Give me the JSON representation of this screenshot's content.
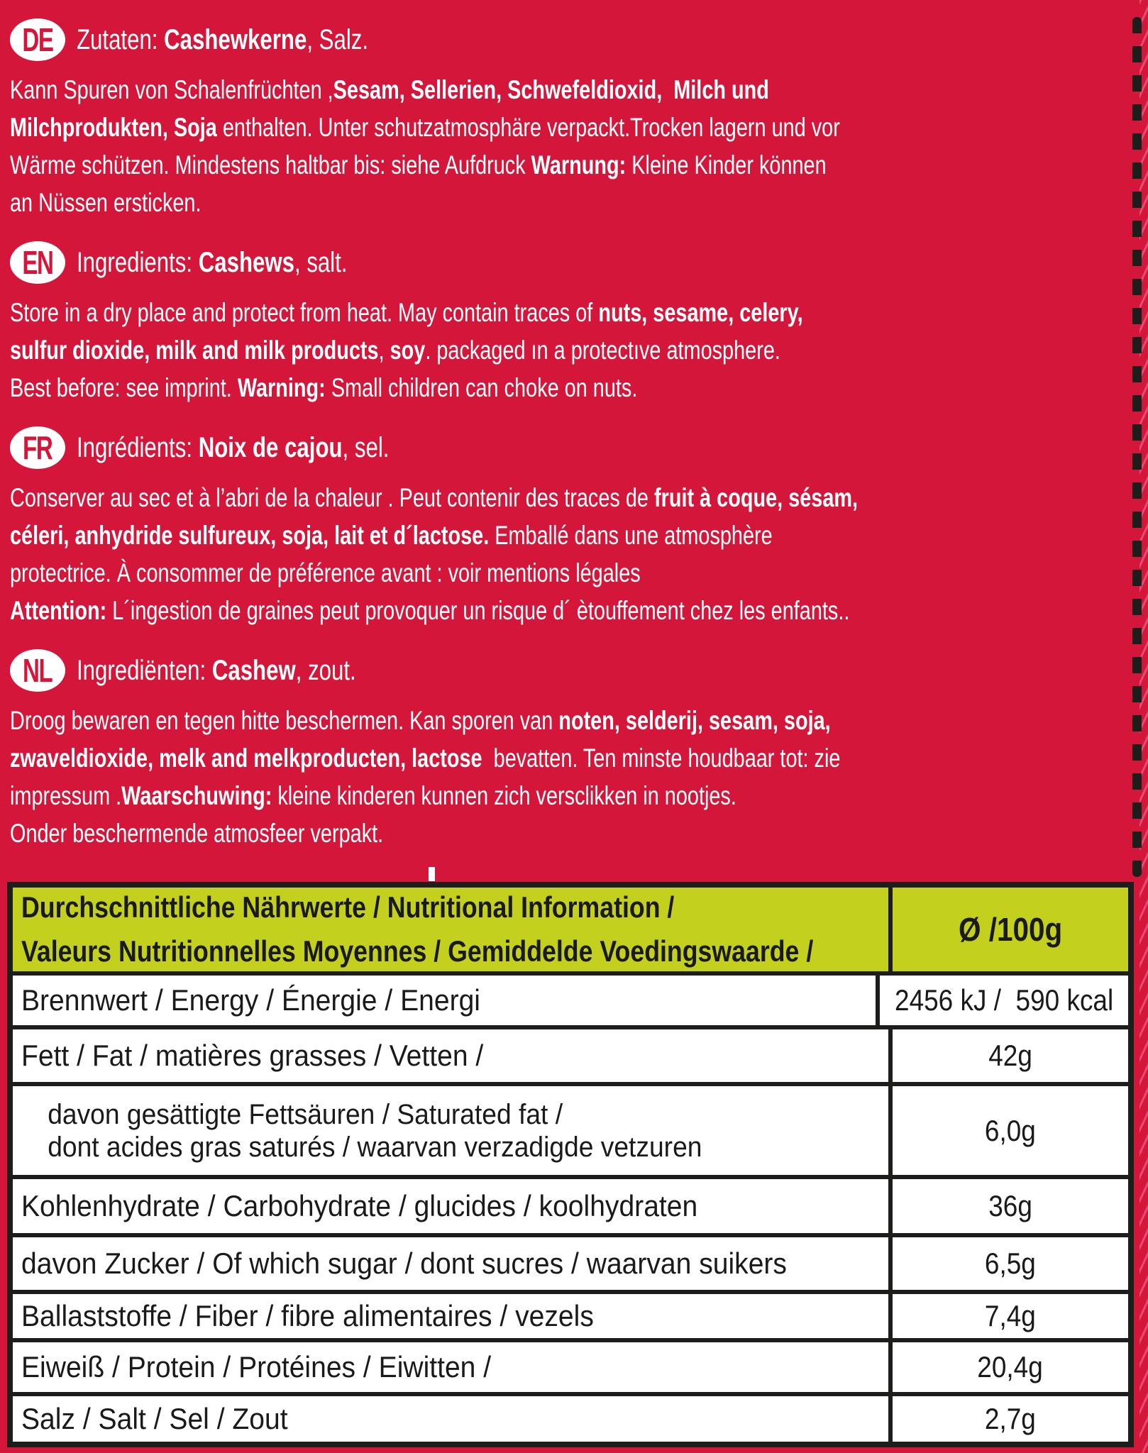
{
  "colors": {
    "background_red": "#d4163a",
    "table_header_green": "#c3d01e",
    "ink_black": "#1d1d1b",
    "text_white": "#ffffff",
    "edge_pink": "#f4749c"
  },
  "sections": [
    {
      "badge": "DE",
      "head": [
        {
          "t": "Zutaten: "
        },
        {
          "t": "Cashewkerne",
          "b": true
        },
        {
          "t": ", Salz."
        }
      ],
      "lines": [
        [
          {
            "t": "Kann Spuren von Schalenfrüchten ,"
          },
          {
            "t": "Sesam, Sellerien, Schwefeldioxid,  Milch und",
            "b": true
          }
        ],
        [
          {
            "t": "Milchprodukten, Soja",
            "b": true
          },
          {
            "t": " enthalten. Unter schutzatmosphäre verpackt.Trocken lagern und vor"
          }
        ],
        [
          {
            "t": "Wärme schützen. Mindestens haltbar bis: siehe Aufdruck "
          },
          {
            "t": "Warnung:",
            "b": true
          },
          {
            "t": " Kleine Kinder können"
          }
        ],
        [
          {
            "t": "an Nüssen ersticken."
          }
        ]
      ]
    },
    {
      "badge": "EN",
      "head": [
        {
          "t": "Ingredients: "
        },
        {
          "t": "Cashews",
          "b": true
        },
        {
          "t": ", salt."
        }
      ],
      "lines": [
        [
          {
            "t": "Store in a dry place and protect from heat. May contain traces of "
          },
          {
            "t": "nuts, sesame, celery,",
            "b": true
          }
        ],
        [
          {
            "t": "sulfur dioxide, milk and milk products",
            "b": true
          },
          {
            "t": ", "
          },
          {
            "t": "soy",
            "b": true
          },
          {
            "t": ". packaged ın a protectıve atmosphere."
          }
        ],
        [
          {
            "t": "Best before: see imprint. "
          },
          {
            "t": "Warning:",
            "b": true
          },
          {
            "t": " Small children can choke on nuts."
          }
        ]
      ]
    },
    {
      "badge": "FR",
      "head": [
        {
          "t": "Ingrédients: "
        },
        {
          "t": "Noix de cajou",
          "b": true
        },
        {
          "t": ", sel."
        }
      ],
      "lines": [
        [
          {
            "t": "Conserver au sec et à l’abri de la chaleur . Peut contenir des traces de "
          },
          {
            "t": "fruit à coque, sésam,",
            "b": true
          }
        ],
        [
          {
            "t": "céleri, anhydride sulfureux, soja, lait et d´lactose.",
            "b": true
          },
          {
            "t": " Emballé dans une atmosphère"
          }
        ],
        [
          {
            "t": "protectrice. À consommer de préférence avant : voir mentions légales"
          }
        ],
        [
          {
            "t": "Attention:",
            "b": true
          },
          {
            "t": " L´ingestion de graines peut provoquer un risque d´ ètouffement chez les enfants.."
          }
        ]
      ]
    },
    {
      "badge": "NL",
      "head": [
        {
          "t": "Ingrediënten: "
        },
        {
          "t": "Cashew",
          "b": true
        },
        {
          "t": ", zout."
        }
      ],
      "lines": [
        [
          {
            "t": "Droog bewaren en tegen hitte beschermen. Kan sporen van "
          },
          {
            "t": "noten, selderij, sesam, soja,",
            "b": true
          }
        ],
        [
          {
            "t": "zwaveldioxide, melk and melkproducten, lactose",
            "b": true
          },
          {
            "t": "  bevatten. Ten minste houdbaar tot: zie"
          }
        ],
        [
          {
            "t": "impressum ."
          },
          {
            "t": "Waarschuwing:",
            "b": true
          },
          {
            "t": " kleine kinderen kunnen zich versclikken in nootjes."
          }
        ],
        [
          {
            "t": "Onder beschermende atmosfeer verpakt."
          }
        ]
      ]
    }
  ],
  "table": {
    "header": {
      "line1": "Durchschnittliche Nährwerte / Nutritional Information /",
      "line2": "Valeurs Nutritionnelles Moyennes / Gemiddelde Voedingswaarde /",
      "unit": "Ø /100g"
    },
    "rows": [
      {
        "label": "Brennwert / Energy / Énergie / Energi",
        "value": "2456 kJ /  590 kcal"
      },
      {
        "label": "Fett / Fat / matières grasses / Vetten /",
        "value": "42g"
      },
      {
        "label": "davon gesättigte Fettsäuren / Saturated fat /",
        "label2": "dont acides gras saturés / waarvan verzadigde vetzuren",
        "value": "6,0g"
      },
      {
        "label": "Kohlenhydrate / Carbohydrate / glucides / koolhydraten",
        "value": "36g"
      },
      {
        "label": "davon Zucker / Of which sugar / dont sucres / waarvan suikers",
        "value": "6,5g"
      },
      {
        "label": "Ballaststoffe / Fiber / fibre alimentaires / vezels",
        "value": "7,4g"
      },
      {
        "label": "Eiweiß / Protein / Protéines / Eiwitten /",
        "value": "20,4g"
      },
      {
        "label": "Salz / Salt / Sel / Zout",
        "value": "2,7g"
      }
    ]
  }
}
